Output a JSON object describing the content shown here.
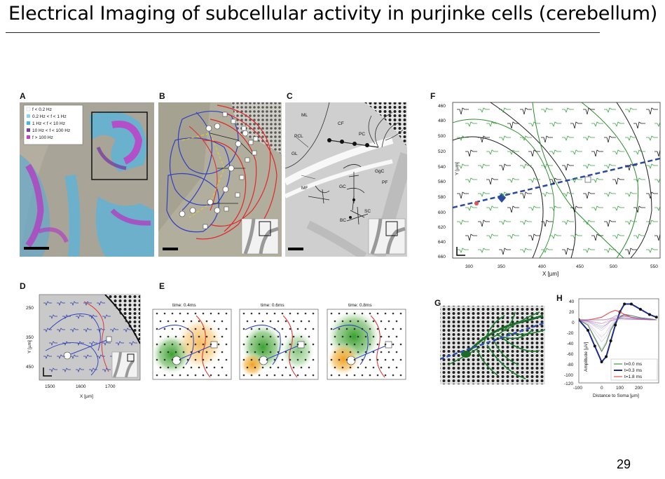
{
  "slide": {
    "title": "Electrical Imaging of subcellular activity in purjinke cells (cerebellum)",
    "page_number": "29"
  },
  "panels": {
    "A": {
      "label": "A",
      "legend": [
        "f < 0.2 Hz",
        "0.2 Hz < f < 1 Hz",
        "1 Hz < f < 10 Hz",
        "10 Hz < f < 100 Hz",
        "f > 100 Hz"
      ],
      "legend_colors": [
        "#ffffff",
        "#8fd3e6",
        "#40b8e0",
        "#7a3fa0",
        "#c040c8"
      ]
    },
    "B": {
      "label": "B"
    },
    "C": {
      "label": "C",
      "annotations": [
        "ML",
        "PCL",
        "GL",
        "MF",
        "CF",
        "PC",
        "GgC",
        "PF",
        "GC",
        "SC",
        "BC"
      ]
    },
    "D": {
      "label": "D",
      "xlabel": "X [µm]",
      "ylabel": "Y [µm]",
      "xticks": [
        "1500",
        "1600",
        "1700"
      ],
      "yticks": [
        "250",
        "350",
        "450"
      ]
    },
    "E": {
      "label": "E",
      "frames": [
        "time: 0.4ms",
        "time: 0.6ms",
        "time: 0.8ms"
      ]
    },
    "F": {
      "label": "F",
      "xlabel": "X [µm]",
      "ylabel": "Y [µm]",
      "xticks": [
        "300",
        "350",
        "400",
        "450",
        "500",
        "550"
      ],
      "yticks": [
        "460",
        "480",
        "500",
        "520",
        "540",
        "560",
        "580",
        "600",
        "620",
        "640",
        "660"
      ]
    },
    "G": {
      "label": "G"
    },
    "H": {
      "label": "H",
      "xlabel": "Distance to Soma [µm]",
      "ylabel": "Amplitude [µV]",
      "xticks": [
        "-100",
        "0",
        "100",
        "200"
      ],
      "yticks": [
        "40",
        "20",
        "0",
        "-20",
        "-40",
        "-60",
        "-80",
        "-100",
        "-120"
      ],
      "legend": [
        "t=0.0 ms",
        "t=0.3 ms",
        "t=1.8 ms"
      ],
      "legend_colors": [
        "#3a9a3a",
        "#1a2a8a",
        "#e05050"
      ]
    }
  },
  "chart_data": {
    "type": "line",
    "xlim": [
      -100,
      250
    ],
    "ylim": [
      -120,
      40
    ],
    "x": [
      -100,
      -60,
      -30,
      0,
      20,
      40,
      60,
      80,
      100,
      130,
      170,
      210,
      240
    ],
    "series": [
      {
        "name": "t=0.0 ms",
        "values": [
          0,
          -10,
          -35,
          -60,
          -45,
          -20,
          -5,
          5,
          10,
          8,
          4,
          2,
          0
        ]
      },
      {
        "name": "t=0.3 ms",
        "values": [
          0,
          -20,
          -50,
          -80,
          -70,
          -40,
          -10,
          15,
          30,
          30,
          20,
          10,
          5
        ]
      },
      {
        "name": "t=1.8 ms",
        "values": [
          0,
          0,
          2,
          5,
          10,
          15,
          18,
          15,
          10,
          5,
          2,
          0,
          0
        ]
      }
    ]
  }
}
